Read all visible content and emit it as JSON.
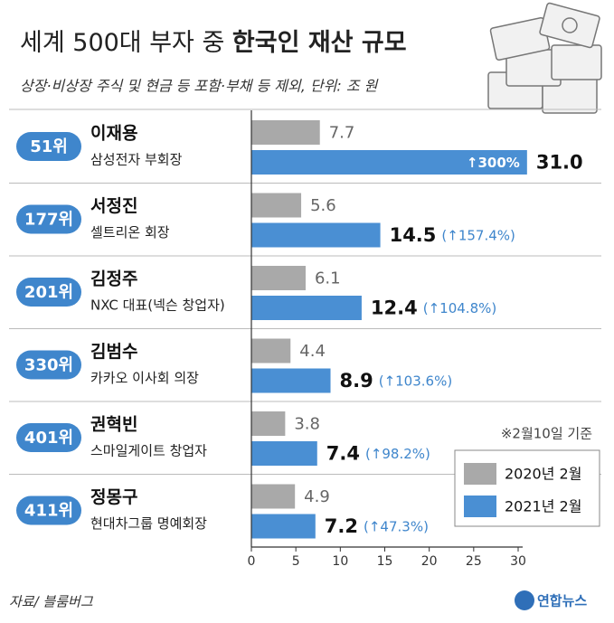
{
  "chart_data": {
    "type": "hbar",
    "title": [
      "세계 500대 부자 중",
      "한국인 재산 규모"
    ],
    "subtitle": "상장·비상장 주식 및 현금 등 포함·부채 등 제외, 단위: 조 원",
    "note": "※2월10일 기준",
    "source": "자료/ 블룸버그",
    "logo": "연합뉴스",
    "categories": [
      "이재용",
      "서정진",
      "김정주",
      "김범수",
      "권혁빈",
      "정몽구"
    ],
    "ranks": [
      "51위",
      "177위",
      "201위",
      "330위",
      "401위",
      "411위"
    ],
    "roles": [
      "삼성전자 부회장",
      "셀트리온 회장",
      "NXC 대표(넥슨 창업자)",
      "카카오 이사회 의장",
      "스마일게이트 창업자",
      "현대차그룹 명예회장"
    ],
    "series": [
      {
        "name": "2020년 2월",
        "color": "#a9a9a9",
        "values": [
          7.7,
          5.6,
          6.1,
          4.4,
          3.8,
          4.9
        ]
      },
      {
        "name": "2021년 2월",
        "color": "#4a8fd3",
        "values": [
          31.0,
          14.5,
          12.4,
          8.9,
          7.4,
          7.2
        ],
        "value_labels": [
          "31.0",
          "14.5",
          "12.4",
          "8.9",
          "7.4",
          "7.2"
        ],
        "growth_labels": [
          "↑300%",
          "(↑157.4%)",
          "(↑104.8%)",
          "(↑103.6%)",
          "(↑98.2%)",
          "(↑47.3%)"
        ]
      }
    ],
    "xlim": [
      0,
      30
    ],
    "xticks": [
      0,
      5,
      10,
      15,
      20,
      25,
      30
    ],
    "legend": "lower-right"
  }
}
